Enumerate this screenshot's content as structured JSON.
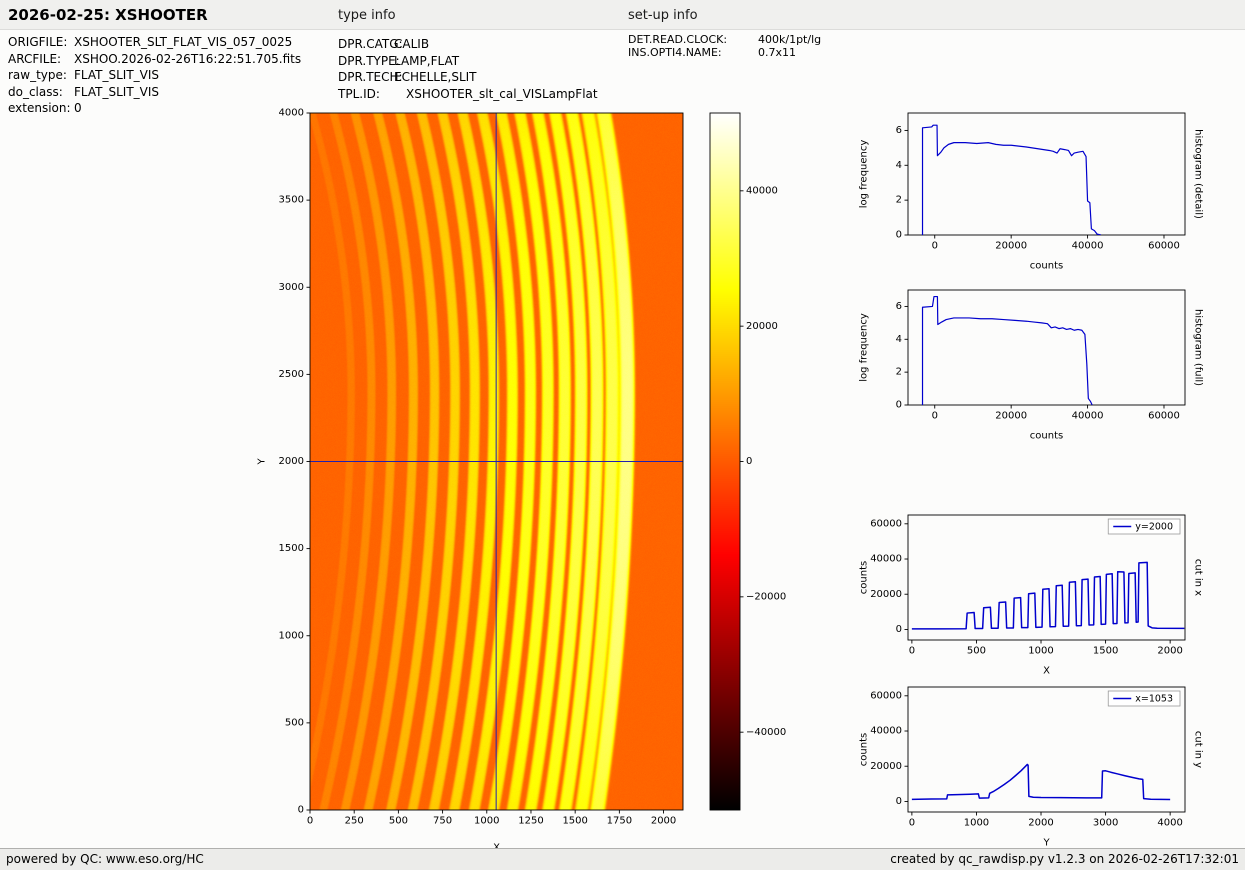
{
  "header": {
    "title": "2026-02-25: XSHOOTER",
    "type_info_label": "type info",
    "setup_info_label": "set-up info"
  },
  "file_info": {
    "rows": [
      {
        "label": "ORIGFILE:",
        "value": "XSHOOTER_SLT_FLAT_VIS_057_0025"
      },
      {
        "label": "ARCFILE:",
        "value": "XSHOO.2026-02-26T16:22:51.705.fits"
      },
      {
        "label": "raw_type:",
        "value": "FLAT_SLIT_VIS"
      },
      {
        "label": "do_class:",
        "value": "FLAT_SLIT_VIS"
      },
      {
        "label": "extension:",
        "value": "0"
      }
    ]
  },
  "type_info": {
    "rows": [
      {
        "label": "DPR.CATG:",
        "value": "CALIB"
      },
      {
        "label": "DPR.TYPE:",
        "value": "LAMP,FLAT"
      },
      {
        "label": "DPR.TECH:",
        "value": "ECHELLE,SLIT"
      },
      {
        "label": "TPL.ID:",
        "value": "XSHOOTER_slt_cal_VISLampFlat"
      }
    ]
  },
  "setup_info": {
    "rows": [
      {
        "label": "DET.READ.CLOCK:",
        "value": "400k/1pt/lg"
      },
      {
        "label": "INS.OPTI4.NAME:",
        "value": "0.7x11"
      }
    ]
  },
  "footer": {
    "left": "powered by QC: www.eso.org/HC",
    "right": "created by qc_rawdisp.py v1.2.3 on 2026-02-26T17:32:01"
  },
  "colors": {
    "line": "#0000cd",
    "crosshair": "#2020b0",
    "axis": "#000000"
  },
  "chart_data": [
    {
      "id": "main_image",
      "type": "heatmap",
      "xlabel": "X",
      "ylabel": "Y",
      "xlim": [
        0,
        2110
      ],
      "ylim": [
        0,
        4000
      ],
      "xticks": [
        0,
        250,
        500,
        750,
        1000,
        1250,
        1500,
        1750,
        2000
      ],
      "yticks": [
        0,
        500,
        1000,
        1500,
        2000,
        2500,
        3000,
        3500,
        4000
      ],
      "crosshair": {
        "x": 1053,
        "y": 2000
      },
      "colormap": "hot",
      "vmin": -51500,
      "vmax": 51500,
      "background_level": 1500,
      "apex_y": 2400,
      "curve_scale_lower": 2400,
      "curve_scale_upper": 1800,
      "orders": {
        "centers": [
          225,
          340,
          455,
          578,
          698,
          814,
          926,
          1034,
          1139,
          1241,
          1340,
          1436,
          1529,
          1619,
          1706,
          1790
        ],
        "amplitudes": [
          3500,
          6000,
          9000,
          12000,
          15000,
          17500,
          20000,
          22500,
          24500,
          26500,
          28000,
          29500,
          31000,
          32500,
          31500,
          37500
        ],
        "widths": [
          22,
          24,
          26,
          27,
          28,
          29,
          30,
          31,
          32,
          33,
          34,
          35,
          36,
          37,
          39,
          43
        ],
        "curvatures": [
          280,
          272,
          264,
          256,
          248,
          240,
          232,
          224,
          216,
          208,
          200,
          193,
          186,
          180,
          174,
          168
        ]
      }
    },
    {
      "id": "colorbar",
      "type": "colorbar",
      "colormap": "hot",
      "vmin": -51500,
      "vmax": 51500,
      "ticks": [
        40000,
        20000,
        0,
        -20000,
        -40000
      ]
    },
    {
      "id": "histogram_detail",
      "type": "line",
      "xlabel": "counts",
      "ylabel": "log frequency",
      "right_label": "histogram (detail)",
      "xlim": [
        -7000,
        65500
      ],
      "ylim": [
        0,
        7
      ],
      "xticks": [
        0,
        20000,
        40000,
        60000
      ],
      "yticks": [
        0,
        2,
        4,
        6
      ],
      "line_width": 1.2,
      "points": [
        [
          -3200,
          0
        ],
        [
          -3200,
          6.15
        ],
        [
          -800,
          6.2
        ],
        [
          -400,
          6.3
        ],
        [
          600,
          6.3
        ],
        [
          700,
          4.55
        ],
        [
          1600,
          4.75
        ],
        [
          2400,
          5.0
        ],
        [
          3600,
          5.2
        ],
        [
          5000,
          5.3
        ],
        [
          8000,
          5.3
        ],
        [
          11000,
          5.25
        ],
        [
          14000,
          5.3
        ],
        [
          16000,
          5.2
        ],
        [
          18000,
          5.15
        ],
        [
          20000,
          5.15
        ],
        [
          22000,
          5.1
        ],
        [
          24000,
          5.05
        ],
        [
          25500,
          5.0
        ],
        [
          27000,
          4.95
        ],
        [
          28500,
          4.9
        ],
        [
          30000,
          4.85
        ],
        [
          31000,
          4.8
        ],
        [
          32000,
          4.7
        ],
        [
          32800,
          4.95
        ],
        [
          34000,
          4.9
        ],
        [
          35000,
          4.85
        ],
        [
          35800,
          4.55
        ],
        [
          36500,
          4.7
        ],
        [
          37500,
          4.75
        ],
        [
          38800,
          4.8
        ],
        [
          39600,
          4.5
        ],
        [
          40000,
          1.95
        ],
        [
          40600,
          1.85
        ],
        [
          41000,
          0.35
        ],
        [
          41800,
          0.25
        ],
        [
          42500,
          0.05
        ],
        [
          43500,
          0
        ]
      ]
    },
    {
      "id": "histogram_full",
      "type": "line",
      "xlabel": "counts",
      "ylabel": "log frequency",
      "right_label": "histogram (full)",
      "xlim": [
        -7000,
        65500
      ],
      "ylim": [
        0,
        7
      ],
      "xticks": [
        0,
        20000,
        40000,
        60000
      ],
      "yticks": [
        0,
        2,
        4,
        6
      ],
      "line_width": 1.2,
      "points": [
        [
          -3200,
          0
        ],
        [
          -3200,
          5.95
        ],
        [
          -600,
          6.0
        ],
        [
          -200,
          6.6
        ],
        [
          700,
          6.6
        ],
        [
          800,
          4.9
        ],
        [
          1800,
          5.05
        ],
        [
          3000,
          5.2
        ],
        [
          5000,
          5.3
        ],
        [
          9000,
          5.3
        ],
        [
          12000,
          5.25
        ],
        [
          15000,
          5.25
        ],
        [
          18000,
          5.2
        ],
        [
          21000,
          5.15
        ],
        [
          24000,
          5.1
        ],
        [
          26000,
          5.05
        ],
        [
          28000,
          5.0
        ],
        [
          29500,
          4.95
        ],
        [
          30500,
          4.7
        ],
        [
          31500,
          4.75
        ],
        [
          32500,
          4.65
        ],
        [
          33500,
          4.7
        ],
        [
          34500,
          4.6
        ],
        [
          35500,
          4.65
        ],
        [
          36500,
          4.55
        ],
        [
          37500,
          4.6
        ],
        [
          38500,
          4.55
        ],
        [
          39300,
          4.3
        ],
        [
          39800,
          2.5
        ],
        [
          40200,
          0.4
        ],
        [
          40800,
          0.2
        ],
        [
          41200,
          0
        ]
      ]
    },
    {
      "id": "cut_in_x",
      "type": "line",
      "xlabel": "X",
      "ylabel": "counts",
      "right_label": "cut in x",
      "legend": "y=2000",
      "xlim": [
        -30,
        2115
      ],
      "ylim": [
        -6000,
        65000
      ],
      "xticks": [
        0,
        500,
        1000,
        1500,
        2000
      ],
      "yticks": [
        0,
        20000,
        40000,
        60000
      ],
      "line_width": 1.5,
      "points": [
        [
          0,
          300
        ],
        [
          200,
          350
        ],
        [
          420,
          400
        ],
        [
          428,
          9300
        ],
        [
          482,
          9600
        ],
        [
          490,
          500
        ],
        [
          548,
          550
        ],
        [
          556,
          12300
        ],
        [
          608,
          12600
        ],
        [
          616,
          650
        ],
        [
          668,
          700
        ],
        [
          676,
          15300
        ],
        [
          726,
          15600
        ],
        [
          734,
          800
        ],
        [
          786,
          850
        ],
        [
          792,
          17800
        ],
        [
          842,
          18100
        ],
        [
          850,
          1000
        ],
        [
          898,
          1050
        ],
        [
          904,
          20300
        ],
        [
          952,
          20600
        ],
        [
          960,
          1200
        ],
        [
          1008,
          1300
        ],
        [
          1014,
          22800
        ],
        [
          1062,
          23100
        ],
        [
          1070,
          1500
        ],
        [
          1112,
          1600
        ],
        [
          1118,
          24800
        ],
        [
          1164,
          25100
        ],
        [
          1172,
          1800
        ],
        [
          1214,
          1900
        ],
        [
          1220,
          26800
        ],
        [
          1266,
          27100
        ],
        [
          1274,
          2100
        ],
        [
          1312,
          2200
        ],
        [
          1318,
          28300
        ],
        [
          1364,
          28600
        ],
        [
          1372,
          2500
        ],
        [
          1408,
          2600
        ],
        [
          1414,
          29800
        ],
        [
          1458,
          30100
        ],
        [
          1466,
          2900
        ],
        [
          1500,
          3000
        ],
        [
          1506,
          31300
        ],
        [
          1551,
          31600
        ],
        [
          1559,
          3300
        ],
        [
          1588,
          3400
        ],
        [
          1594,
          32800
        ],
        [
          1642,
          32600
        ],
        [
          1650,
          3700
        ],
        [
          1674,
          3800
        ],
        [
          1680,
          31800
        ],
        [
          1729,
          32100
        ],
        [
          1737,
          4100
        ],
        [
          1752,
          4200
        ],
        [
          1758,
          37800
        ],
        [
          1822,
          38100
        ],
        [
          1830,
          2000
        ],
        [
          1860,
          900
        ],
        [
          1900,
          700
        ],
        [
          2110,
          600
        ]
      ]
    },
    {
      "id": "cut_in_y",
      "type": "line",
      "xlabel": "Y",
      "ylabel": "counts",
      "right_label": "cut in y",
      "legend": "x=1053",
      "xlim": [
        -60,
        4230
      ],
      "ylim": [
        -6000,
        65000
      ],
      "xticks": [
        0,
        1000,
        2000,
        3000,
        4000
      ],
      "yticks": [
        0,
        20000,
        40000,
        60000
      ],
      "line_width": 1.5,
      "points": [
        [
          0,
          1200
        ],
        [
          300,
          1350
        ],
        [
          540,
          1450
        ],
        [
          552,
          3700
        ],
        [
          700,
          3900
        ],
        [
          900,
          4100
        ],
        [
          1030,
          4300
        ],
        [
          1045,
          1900
        ],
        [
          1120,
          1950
        ],
        [
          1190,
          2050
        ],
        [
          1205,
          4600
        ],
        [
          1260,
          5600
        ],
        [
          1340,
          7400
        ],
        [
          1430,
          9600
        ],
        [
          1520,
          12000
        ],
        [
          1610,
          14800
        ],
        [
          1690,
          17400
        ],
        [
          1750,
          19600
        ],
        [
          1788,
          21000
        ],
        [
          1800,
          20600
        ],
        [
          1812,
          2900
        ],
        [
          1880,
          2400
        ],
        [
          2000,
          2250
        ],
        [
          2300,
          2150
        ],
        [
          2700,
          2050
        ],
        [
          2940,
          2000
        ],
        [
          2952,
          17300
        ],
        [
          3000,
          17400
        ],
        [
          3080,
          16600
        ],
        [
          3180,
          15700
        ],
        [
          3300,
          14600
        ],
        [
          3420,
          13600
        ],
        [
          3520,
          12800
        ],
        [
          3576,
          12500
        ],
        [
          3590,
          1600
        ],
        [
          3700,
          1250
        ],
        [
          3850,
          1150
        ],
        [
          4000,
          1100
        ]
      ]
    }
  ]
}
